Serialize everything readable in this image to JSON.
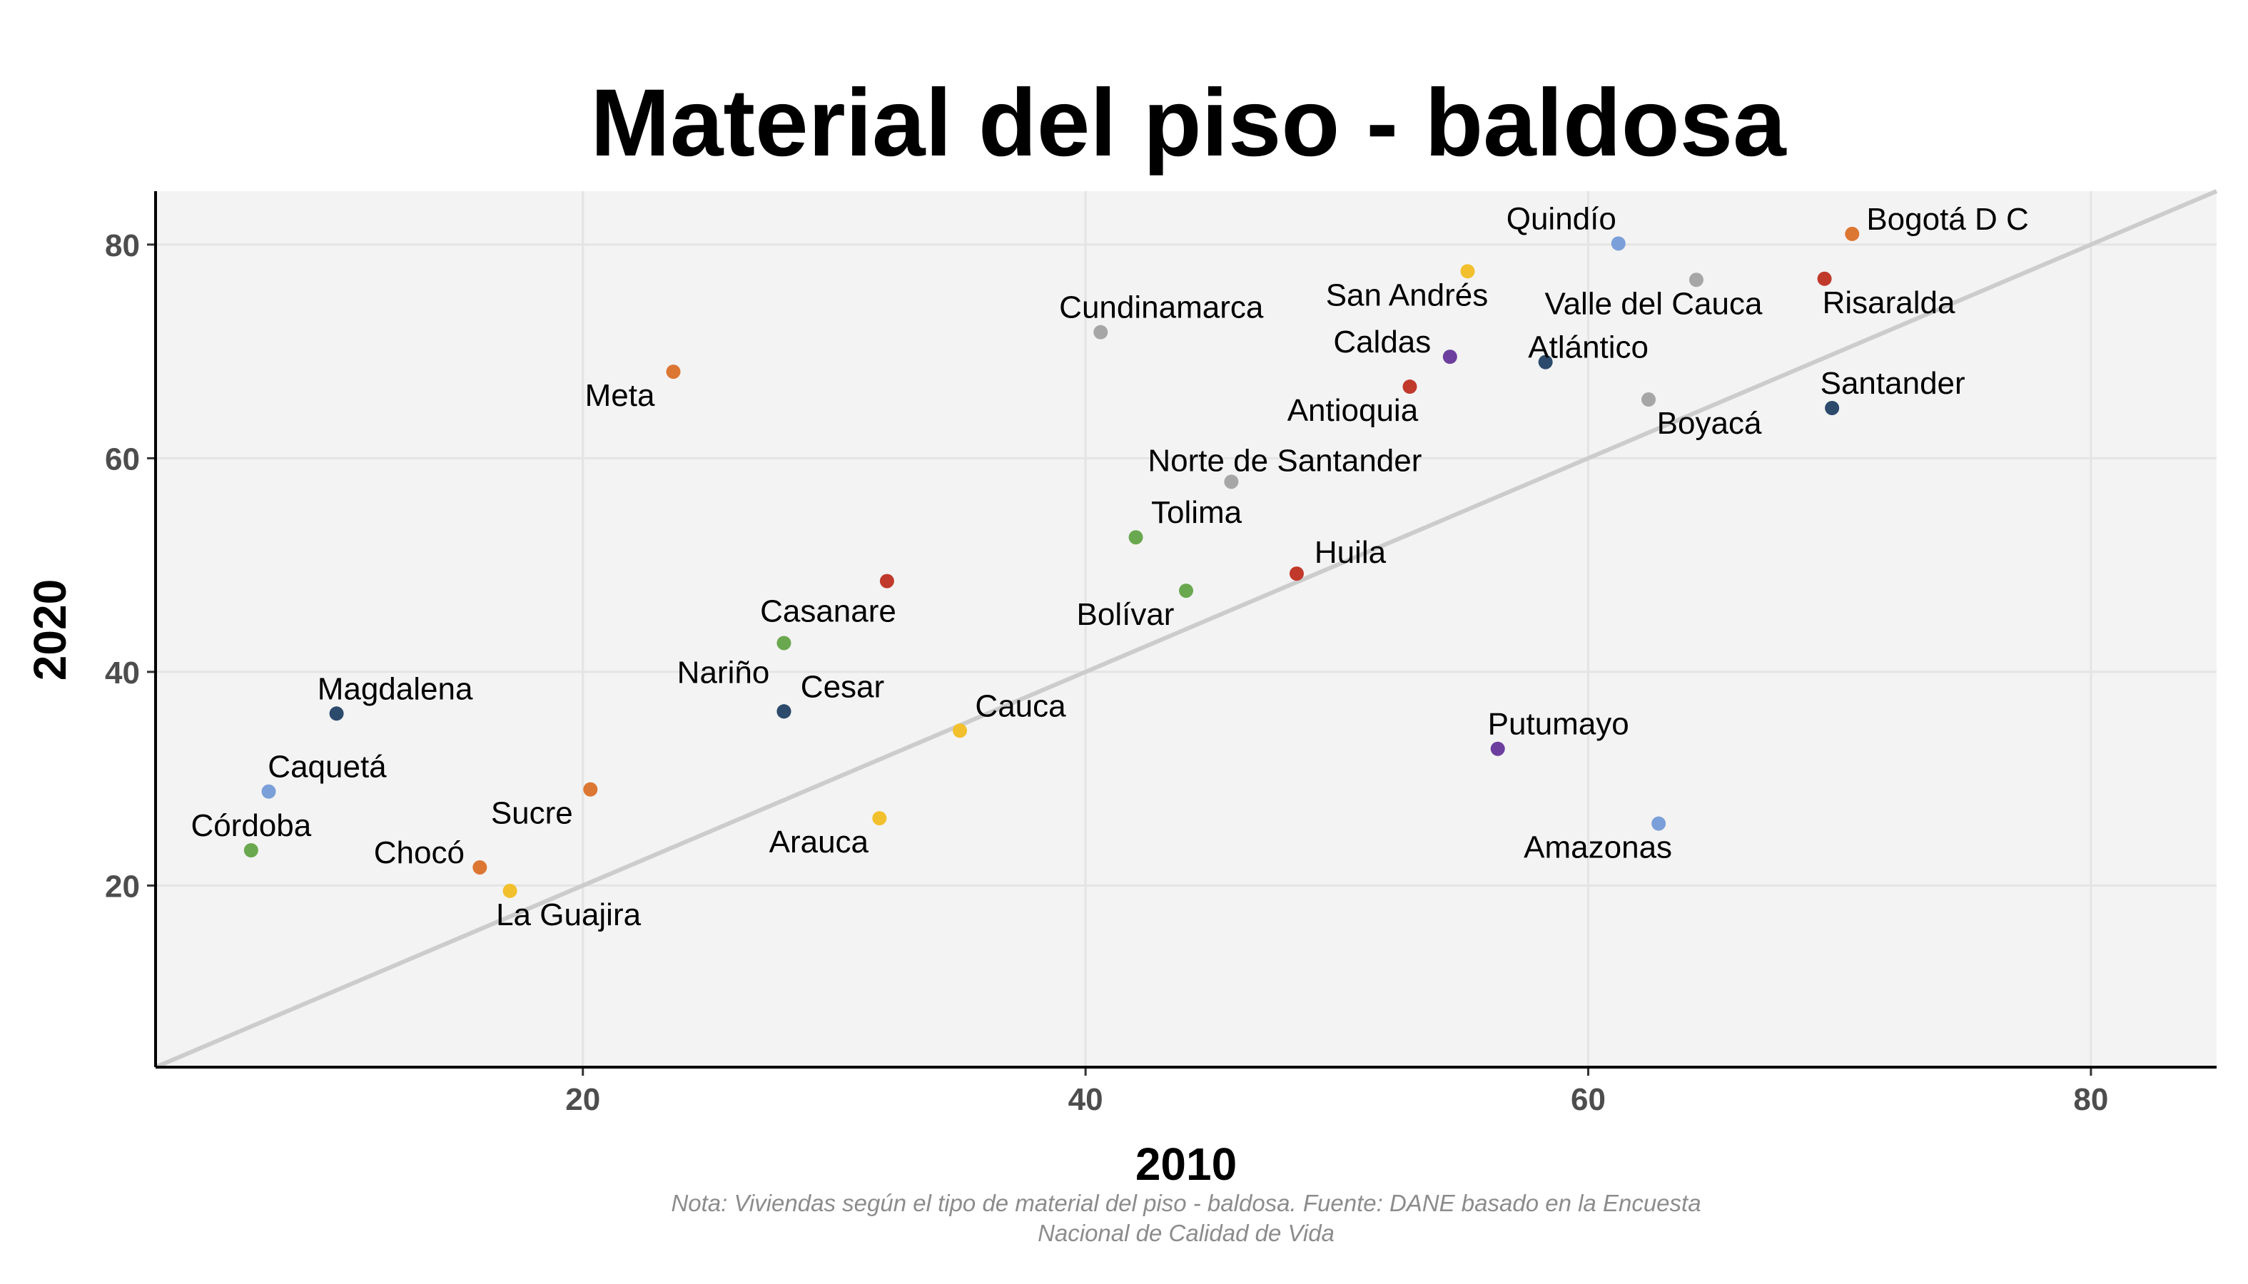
{
  "chart_data": {
    "type": "scatter",
    "title": "Material del piso - baldosa",
    "xlabel": "2010",
    "ylabel": "2020",
    "xlim": [
      3,
      85
    ],
    "ylim": [
      3,
      85
    ],
    "x_ticks": [
      20,
      40,
      60,
      80
    ],
    "y_ticks": [
      20,
      40,
      60,
      80
    ],
    "grid": true,
    "reference_line": "y = x",
    "caption_lines": [
      "Nota: Viviendas según el tipo de material del piso - baldosa. Fuente: DANE basado en la Encuesta",
      "Nacional de Calidad de Vida"
    ],
    "colors": {
      "panel_bg": "#f3f3f3",
      "grid": "#e4e4e4",
      "reference_line": "#cccccc",
      "axis": "#000000"
    },
    "points": [
      {
        "label": "Bogotá D C",
        "x": 70.5,
        "y": 81.0,
        "color": "#dc7633"
      },
      {
        "label": "Quindío",
        "x": 61.2,
        "y": 80.1,
        "color": "#7b9fd9"
      },
      {
        "label": "San Andrés",
        "x": 55.2,
        "y": 77.5,
        "color": "#f2c02c"
      },
      {
        "label": "Valle del Cauca",
        "x": 64.3,
        "y": 76.7,
        "color": "#a6a6a6"
      },
      {
        "label": "Risaralda",
        "x": 69.4,
        "y": 76.8,
        "color": "#c0392b"
      },
      {
        "label": "Cundinamarca",
        "x": 40.6,
        "y": 71.8,
        "color": "#a6a6a6"
      },
      {
        "label": "Caldas",
        "x": 54.5,
        "y": 69.5,
        "color": "#6c3f9f"
      },
      {
        "label": "Atlántico",
        "x": 58.3,
        "y": 69.0,
        "color": "#2c4a6b"
      },
      {
        "label": "Meta",
        "x": 23.6,
        "y": 68.1,
        "color": "#dc7633"
      },
      {
        "label": "Antioquia",
        "x": 52.9,
        "y": 66.7,
        "color": "#c0392b"
      },
      {
        "label": "Boyacá",
        "x": 62.4,
        "y": 65.5,
        "color": "#a6a6a6"
      },
      {
        "label": "Santander",
        "x": 69.7,
        "y": 64.7,
        "color": "#2c4a6b"
      },
      {
        "label": "Norte de Santander",
        "x": 45.8,
        "y": 57.8,
        "color": "#a6a6a6"
      },
      {
        "label": "Tolima",
        "x": 42.0,
        "y": 52.6,
        "color": "#6aa84f"
      },
      {
        "label": "Huila",
        "x": 48.4,
        "y": 49.2,
        "color": "#c0392b"
      },
      {
        "label": "",
        "x": 32.1,
        "y": 48.5,
        "color": "#c0392b"
      },
      {
        "label": "Bolívar",
        "x": 44.0,
        "y": 47.6,
        "color": "#6aa84f"
      },
      {
        "label": "Casanare",
        "x": 28.0,
        "y": 42.7,
        "color": "#6aa84f"
      },
      {
        "label": "Cesar",
        "x": 28.0,
        "y": 36.3,
        "color": "#2c4a6b"
      },
      {
        "label": "Nariño",
        "x": 28.0,
        "y": 36.3,
        "color": "#2c4a6b"
      },
      {
        "label": "Magdalena",
        "x": 10.2,
        "y": 36.1,
        "color": "#2c4a6b"
      },
      {
        "label": "Cauca",
        "x": 35.0,
        "y": 34.5,
        "color": "#f2c02c"
      },
      {
        "label": "Putumayo",
        "x": 56.4,
        "y": 32.8,
        "color": "#6c3f9f"
      },
      {
        "label": "Caquetá",
        "x": 7.5,
        "y": 28.8,
        "color": "#7b9fd9"
      },
      {
        "label": "Sucre",
        "x": 20.3,
        "y": 29.0,
        "color": "#dc7633"
      },
      {
        "label": "Arauca",
        "x": 31.8,
        "y": 26.3,
        "color": "#f2c02c"
      },
      {
        "label": "Amazonas",
        "x": 62.8,
        "y": 25.8,
        "color": "#7b9fd9"
      },
      {
        "label": "Córdoba",
        "x": 6.8,
        "y": 23.3,
        "color": "#6aa84f"
      },
      {
        "label": "Chocó",
        "x": 15.9,
        "y": 21.7,
        "color": "#dc7633"
      },
      {
        "label": "La Guajira",
        "x": 17.1,
        "y": 19.5,
        "color": "#f2c02c"
      }
    ]
  }
}
